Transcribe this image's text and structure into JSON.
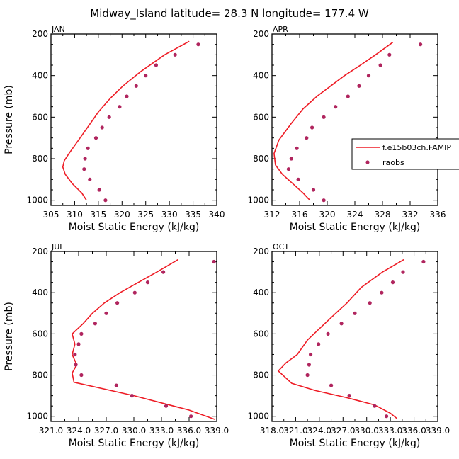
{
  "title": "Midway_Island   latitude= 28.3 N longitude= 177.4 W",
  "colors": {
    "model_line": "#ee1c25",
    "raobs_marker": "#b0255e",
    "axis": "#000000"
  },
  "legend": {
    "entries": [
      "f.e15b03ch.FAMIP",
      "raobs"
    ]
  },
  "chart_data": [
    {
      "type": "line",
      "panel": "JAN",
      "xlabel": "Moist Static Energy (kJ/kg)",
      "ylabel": "Pressure (mb)",
      "xlim": [
        305,
        340
      ],
      "ylim": [
        1025,
        200
      ],
      "xticks": [
        305,
        310,
        315,
        320,
        325,
        330,
        335,
        340
      ],
      "xticklabels": [
        "305",
        "310",
        "315",
        "320",
        "325",
        "330",
        "335",
        "340"
      ],
      "yticks": [
        200,
        400,
        600,
        800,
        1000
      ],
      "yticklabels": [
        "200",
        "400",
        "600",
        "800",
        "1000"
      ],
      "series": [
        {
          "name": "f.e15b03ch.FAMIP",
          "style": "line",
          "x": [
            334.2,
            329.0,
            324.0,
            320.2,
            317.5,
            315.0,
            313.0,
            311.0,
            308.8,
            307.8,
            307.5,
            308.0,
            309.5,
            311.5,
            312.5
          ],
          "y": [
            235,
            300,
            380,
            450,
            510,
            575,
            640,
            705,
            775,
            810,
            840,
            875,
            920,
            965,
            1000
          ]
        },
        {
          "name": "raobs",
          "style": "marker",
          "x": [
            336.1,
            331.2,
            327.2,
            325.0,
            323.0,
            321.0,
            319.5,
            317.3,
            315.8,
            314.5,
            312.8,
            312.2,
            312.0,
            313.2,
            315.2,
            316.5
          ],
          "y": [
            250,
            300,
            350,
            400,
            450,
            500,
            550,
            600,
            650,
            700,
            750,
            800,
            850,
            900,
            950,
            1000
          ]
        }
      ]
    },
    {
      "type": "line",
      "panel": "APR",
      "xlabel": "Moist Static Energy (kJ/kg)",
      "ylabel": "",
      "xlim": [
        312,
        336
      ],
      "ylim": [
        1025,
        200
      ],
      "xticks": [
        312,
        316,
        320,
        324,
        328,
        332,
        336
      ],
      "xticklabels": [
        "312",
        "316",
        "320",
        "324",
        "328",
        "332",
        "336"
      ],
      "yticks": [
        200,
        400,
        600,
        800,
        1000
      ],
      "yticklabels": [
        "200",
        "400",
        "600",
        "800",
        "1000"
      ],
      "series": [
        {
          "name": "f.e15b03ch.FAMIP",
          "style": "line",
          "x": [
            329.5,
            327.0,
            324.8,
            322.5,
            320.5,
            318.5,
            316.5,
            314.8,
            313.0,
            312.3,
            312.5,
            313.5,
            315.0,
            316.5,
            317.5
          ],
          "y": [
            240,
            300,
            350,
            400,
            450,
            500,
            560,
            630,
            710,
            775,
            830,
            875,
            920,
            965,
            1000
          ]
        },
        {
          "name": "raobs",
          "style": "marker",
          "x": [
            333.5,
            329.0,
            327.7,
            326.0,
            324.6,
            323.0,
            321.2,
            319.5,
            317.8,
            317.0,
            315.6,
            314.8,
            314.4,
            315.8,
            318.0,
            319.5
          ],
          "y": [
            250,
            300,
            350,
            400,
            450,
            500,
            550,
            600,
            650,
            700,
            750,
            800,
            850,
            900,
            950,
            1000
          ]
        }
      ]
    },
    {
      "type": "line",
      "panel": "JUL",
      "xlabel": "Moist Static Energy (kJ/kg)",
      "ylabel": "Pressure (mb)",
      "xlim": [
        321,
        339
      ],
      "ylim": [
        1025,
        200
      ],
      "xticks": [
        321,
        324,
        327,
        330,
        333,
        336,
        339
      ],
      "xticklabels": [
        "321.0",
        "324.0",
        "327.0",
        "330.0",
        "333.0",
        "336.0",
        "339.0"
      ],
      "yticks": [
        200,
        400,
        600,
        800,
        1000
      ],
      "yticklabels": [
        "200",
        "400",
        "600",
        "800",
        "1000"
      ],
      "series": [
        {
          "name": "f.e15b03ch.FAMIP",
          "style": "line",
          "x": [
            334.8,
            332.5,
            330.5,
            328.5,
            326.8,
            325.5,
            324.5,
            323.3,
            323.6,
            323.3,
            323.8,
            323.3,
            323.5,
            330.0,
            336.0,
            338.8
          ],
          "y": [
            240,
            300,
            350,
            400,
            450,
            500,
            550,
            600,
            650,
            700,
            750,
            790,
            835,
            900,
            970,
            1015
          ]
        },
        {
          "name": "raobs",
          "style": "marker",
          "x": [
            338.7,
            333.2,
            331.5,
            330.1,
            328.2,
            327.0,
            325.8,
            324.3,
            324.0,
            323.6,
            323.7,
            324.3,
            328.1,
            329.8,
            333.5,
            336.2
          ],
          "y": [
            250,
            300,
            350,
            400,
            450,
            500,
            550,
            600,
            650,
            700,
            750,
            800,
            850,
            900,
            950,
            1000
          ]
        }
      ]
    },
    {
      "type": "line",
      "panel": "OCT",
      "xlabel": "Moist Static Energy (kJ/kg)",
      "ylabel": "",
      "xlim": [
        318,
        339
      ],
      "ylim": [
        1025,
        200
      ],
      "xticks": [
        318,
        321,
        324,
        327,
        330,
        333,
        336,
        339
      ],
      "xticklabels": [
        "318.0",
        "321.0",
        "324.0",
        "327.0",
        "330.0",
        "333.0",
        "336.0",
        "339.0"
      ],
      "yticks": [
        200,
        400,
        600,
        800,
        1000
      ],
      "yticklabels": [
        "200",
        "400",
        "600",
        "800",
        "1000"
      ],
      "series": [
        {
          "name": "f.e15b03ch.FAMIP",
          "style": "line",
          "x": [
            334.7,
            332.0,
            329.3,
            327.5,
            325.8,
            324.0,
            322.5,
            321.2,
            319.8,
            318.8,
            320.5,
            323.5,
            327.5,
            331.0,
            333.0,
            333.8
          ],
          "y": [
            240,
            300,
            375,
            450,
            510,
            575,
            630,
            700,
            740,
            780,
            840,
            875,
            910,
            945,
            985,
            1010
          ]
        },
        {
          "name": "raobs",
          "style": "marker",
          "x": [
            337.2,
            334.6,
            333.3,
            331.9,
            330.4,
            328.5,
            326.8,
            325.1,
            323.9,
            322.9,
            322.7,
            322.5,
            325.5,
            327.8,
            331.0,
            332.5
          ],
          "y": [
            250,
            300,
            350,
            400,
            450,
            500,
            550,
            600,
            650,
            700,
            750,
            800,
            850,
            900,
            950,
            1000
          ]
        }
      ]
    }
  ]
}
